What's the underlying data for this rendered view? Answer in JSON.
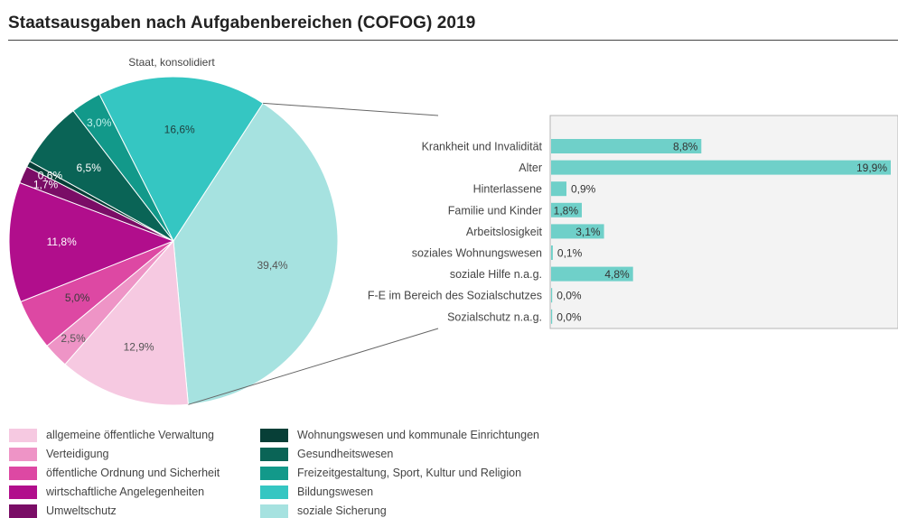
{
  "title": "Staatsausgaben nach Aufgabenbereichen (COFOG) 2019",
  "chart_data": [
    {
      "type": "pie",
      "title": "Staat, konsolidiert",
      "unit": "%",
      "slices": [
        {
          "label": "soziale Sicherung",
          "value": 39.4,
          "value_label": "39,4%",
          "color": "#a6e2e0",
          "label_color": "#555555"
        },
        {
          "label": "allgemeine öffentliche Verwaltung",
          "value": 12.9,
          "value_label": "12,9%",
          "color": "#f6c9e1",
          "label_color": "#555555"
        },
        {
          "label": "Verteidigung",
          "value": 2.5,
          "value_label": "2,5%",
          "color": "#ee94c6",
          "label_color": "#555555"
        },
        {
          "label": "öffentliche Ordnung und Sicherheit",
          "value": 5.0,
          "value_label": "5,0%",
          "color": "#dd48a3",
          "label_color": "#3a3a3a"
        },
        {
          "label": "wirtschaftliche Angelegenheiten",
          "value": 11.8,
          "value_label": "11,8%",
          "color": "#b10e8c",
          "label_color": "#ffffff"
        },
        {
          "label": "Umweltschutz",
          "value": 1.7,
          "value_label": "1,7%",
          "color": "#7a0d66",
          "label_color": "#ffffff"
        },
        {
          "label": "Wohnungswesen und kommunale Einrichtungen",
          "value": 0.6,
          "value_label": "0,6%",
          "color": "#073f37",
          "label_color": "#ffffff"
        },
        {
          "label": "Gesundheitswesen",
          "value": 6.5,
          "value_label": "6,5%",
          "color": "#0a6456",
          "label_color": "#ffffff"
        },
        {
          "label": "Freizeitgestaltung, Sport, Kultur und Religion",
          "value": 3.0,
          "value_label": "3,0%",
          "color": "#12998a",
          "label_color": "#bff1ec"
        },
        {
          "label": "Bildungswesen",
          "value": 16.6,
          "value_label": "16,6%",
          "color": "#35c6c2",
          "label_color": "#1f3f3e"
        }
      ]
    },
    {
      "type": "bar",
      "orientation": "horizontal",
      "unit": "%",
      "categories": [
        "Krankheit und Invalidität",
        "Alter",
        "Hinterlassene",
        "Familie und Kinder",
        "Arbeitslosigkeit",
        "soziales Wohnungswesen",
        "soziale Hilfe n.a.g.",
        "F-E im Bereich des Sozialschutzes",
        "Sozialschutz n.a.g."
      ],
      "values": [
        8.8,
        19.9,
        0.9,
        1.8,
        3.1,
        0.1,
        4.8,
        0.0,
        0.0
      ],
      "value_labels": [
        "8,8%",
        "19,9%",
        "0,9%",
        "1,8%",
        "3,1%",
        "0,1%",
        "4,8%",
        "0,0%",
        "0,0%"
      ],
      "color": "#6fd0c9",
      "xlim": [
        0,
        19.9
      ]
    }
  ],
  "legend": [
    {
      "label": "allgemeine öffentliche Verwaltung",
      "color": "#f6c9e1"
    },
    {
      "label": "Verteidigung",
      "color": "#ee94c6"
    },
    {
      "label": "öffentliche Ordnung und Sicherheit",
      "color": "#dd48a3"
    },
    {
      "label": "wirtschaftliche Angelegenheiten",
      "color": "#b10e8c"
    },
    {
      "label": "Umweltschutz",
      "color": "#7a0d66"
    },
    {
      "label": "Wohnungswesen und kommunale Einrichtungen",
      "color": "#073f37"
    },
    {
      "label": "Gesundheitswesen",
      "color": "#0a6456"
    },
    {
      "label": "Freizeitgestaltung, Sport, Kultur und Religion",
      "color": "#12998a"
    },
    {
      "label": "Bildungswesen",
      "color": "#35c6c2"
    },
    {
      "label": "soziale Sicherung",
      "color": "#a6e2e0"
    }
  ]
}
